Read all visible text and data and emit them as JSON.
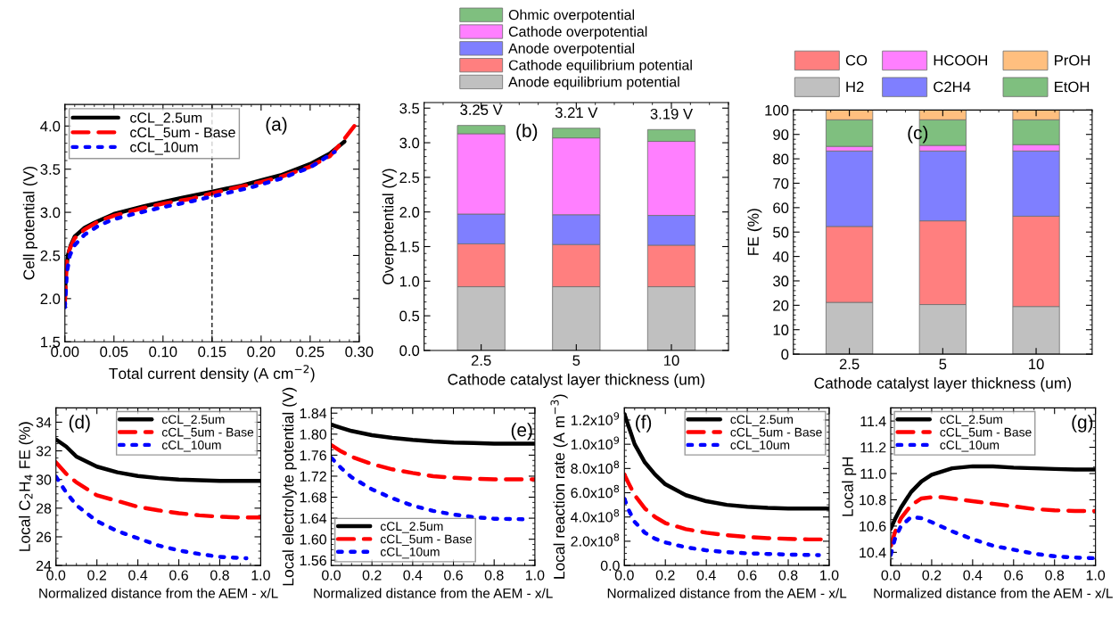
{
  "chart_data": [
    {
      "type": "line",
      "xlabel": "Total current density (A cm$^{−2}$)",
      "ylabel": "Cell potential (V)",
      "annotations": [
        "(a)"
      ],
      "xlim": [
        0,
        0.3
      ],
      "ylim": [
        1.5,
        4.25
      ],
      "xticks": [
        {
          "value": 0,
          "label": "0.00"
        },
        {
          "value": 0.05,
          "label": "0.05"
        },
        {
          "value": 0.1,
          "label": "0.10"
        },
        {
          "value": 0.15,
          "label": "0.15"
        },
        {
          "value": 0.2,
          "label": "0.20"
        },
        {
          "value": 0.25,
          "label": "0.25"
        },
        {
          "value": 0.3,
          "label": "0.30"
        }
      ],
      "yticks": [
        1.5,
        {
          "value": 2.0,
          "label": "2.0"
        },
        2.5,
        {
          "value": 3.0,
          "label": "3.0"
        },
        3.5,
        {
          "value": 4.0,
          "label": "4.0"
        }
      ],
      "legend": "top left",
      "grid": false,
      "ref_lines": [
        {
          "axis": "x",
          "value": 0.15,
          "color": "#000000",
          "line_style": "dashed"
        }
      ],
      "series": [
        {
          "name": "cCL_2.5um",
          "color": "#000000",
          "line_style": "solid",
          "x": [
            0,
            0.001,
            0.003,
            0.006,
            0.01,
            0.02,
            0.03,
            0.05,
            0.08,
            0.1,
            0.12,
            0.15,
            0.18,
            0.2,
            0.22,
            0.25,
            0.27,
            0.285
          ],
          "values": [
            2.0,
            2.3,
            2.5,
            2.62,
            2.72,
            2.82,
            2.88,
            2.98,
            3.07,
            3.12,
            3.17,
            3.24,
            3.31,
            3.37,
            3.43,
            3.56,
            3.68,
            3.82
          ]
        },
        {
          "name": "cCL_5um - Base",
          "color": "#ff0000",
          "line_style": "dashed",
          "x": [
            0,
            0.002,
            0.005,
            0.01,
            0.02,
            0.035,
            0.05,
            0.08,
            0.1,
            0.13,
            0.15,
            0.18,
            0.2,
            0.22,
            0.25,
            0.27,
            0.28,
            0.295
          ],
          "values": [
            1.95,
            2.45,
            2.58,
            2.7,
            2.8,
            2.9,
            2.96,
            3.05,
            3.1,
            3.16,
            3.22,
            3.3,
            3.35,
            3.41,
            3.53,
            3.65,
            3.78,
            4.0
          ]
        },
        {
          "name": "cCL_10um",
          "color": "#0000ff",
          "line_style": "dotted",
          "x": [
            0,
            0.002,
            0.005,
            0.01,
            0.02,
            0.035,
            0.05,
            0.07,
            0.1,
            0.13,
            0.16,
            0.19,
            0.22,
            0.25,
            0.275
          ],
          "values": [
            1.9,
            2.3,
            2.5,
            2.62,
            2.74,
            2.85,
            2.92,
            2.98,
            3.06,
            3.13,
            3.21,
            3.29,
            3.39,
            3.52,
            3.7
          ]
        }
      ]
    },
    {
      "type": "bar",
      "stacked": true,
      "xlabel": "Cathode catalyst layer thickness (um)",
      "ylabel": "Overpotential (V)",
      "annotations": [
        "(b)"
      ],
      "categories": [
        "2.5",
        "5",
        "10"
      ],
      "ylim": [
        0,
        3.58
      ],
      "yticks": [
        {
          "value": 0,
          "label": "0.0"
        },
        {
          "value": 0.5,
          "label": "0.5"
        },
        {
          "value": 1.0,
          "label": "1.0"
        },
        {
          "value": 1.5,
          "label": "1.5"
        },
        {
          "value": 2.0,
          "label": "2.0"
        },
        {
          "value": 2.5,
          "label": "2.5"
        },
        {
          "value": 3.0,
          "label": "3.0"
        },
        {
          "value": 3.5,
          "label": "3.5"
        }
      ],
      "legend": "top",
      "grid": false,
      "totals": [
        "3.25 V",
        "3.21 V",
        "3.19 V"
      ],
      "series": [
        {
          "name": "Anode equilibrium potential",
          "color": "#c0c0c0",
          "values": [
            0.92,
            0.92,
            0.92
          ]
        },
        {
          "name": "Cathode equilibrium potential",
          "color": "#ff7f7f",
          "values": [
            0.62,
            0.61,
            0.6
          ]
        },
        {
          "name": "Anode overpotential",
          "color": "#7f7fff",
          "values": [
            0.43,
            0.43,
            0.43
          ]
        },
        {
          "name": "Cathode overpotential",
          "color": "#ff7fff",
          "values": [
            1.16,
            1.11,
            1.07
          ]
        },
        {
          "name": "Ohmic overpotential",
          "color": "#7fbf7f",
          "values": [
            0.12,
            0.14,
            0.17
          ]
        }
      ]
    },
    {
      "type": "bar",
      "stacked": true,
      "xlabel": "Cathode catalyst layer thickness (um)",
      "ylabel": "FE (%)",
      "annotations": [
        "(c)"
      ],
      "categories": [
        "2.5",
        "5",
        "10"
      ],
      "ylim": [
        0,
        100
      ],
      "yticks": [
        0,
        10,
        20,
        30,
        40,
        50,
        60,
        70,
        80,
        90,
        100
      ],
      "legend": "top",
      "grid": false,
      "series": [
        {
          "name": "H2",
          "color": "#c0c0c0",
          "values": [
            21.2,
            20.3,
            19.5
          ]
        },
        {
          "name": "CO",
          "color": "#ff7f7f",
          "values": [
            31.1,
            34.3,
            37.0
          ]
        },
        {
          "name": "C2H4",
          "color": "#7f7fff",
          "values": [
            30.9,
            28.6,
            26.7
          ]
        },
        {
          "name": "HCOOH",
          "color": "#ff7fff",
          "values": [
            1.9,
            2.3,
            2.6
          ]
        },
        {
          "name": "EtOH",
          "color": "#7fbf7f",
          "values": [
            10.9,
            10.5,
            10.2
          ]
        },
        {
          "name": "PrOH",
          "color": "#ffbf7f",
          "values": [
            4,
            4,
            4
          ]
        }
      ]
    },
    {
      "type": "line",
      "xlabel": "Normalized distance from the AEM - x/L",
      "ylabel": "Local C$_{2}$H$_{4}$ FE (%)",
      "annotations": [
        "(d)"
      ],
      "xlim": [
        0,
        1
      ],
      "ylim": [
        24,
        35
      ],
      "xticks": [
        {
          "value": 0,
          "label": "0.0"
        },
        0.2,
        0.4,
        0.6,
        0.8,
        {
          "value": 1,
          "label": "1.0"
        }
      ],
      "yticks": [
        24,
        26,
        28,
        30,
        32,
        34
      ],
      "legend": "top right",
      "grid": false,
      "series": [
        {
          "name": "cCL_2.5um",
          "color": "#000000",
          "line_style": "solid",
          "x": [
            0,
            0.05,
            0.1,
            0.2,
            0.3,
            0.4,
            0.5,
            0.6,
            0.7,
            0.8,
            0.9,
            1.0
          ],
          "values": [
            32.8,
            32.3,
            31.6,
            30.9,
            30.5,
            30.25,
            30.1,
            30.0,
            29.95,
            29.9,
            29.9,
            29.9
          ]
        },
        {
          "name": "cCL_5um - Base",
          "color": "#ff0000",
          "line_style": "dashed",
          "x": [
            0,
            0.05,
            0.1,
            0.2,
            0.3,
            0.4,
            0.5,
            0.6,
            0.7,
            0.8,
            0.9,
            1.0
          ],
          "values": [
            31.2,
            30.4,
            29.8,
            28.9,
            28.5,
            28.1,
            27.85,
            27.65,
            27.5,
            27.4,
            27.35,
            27.35
          ]
        },
        {
          "name": "cCL_10um",
          "color": "#0000ff",
          "line_style": "dotted",
          "x": [
            0,
            0.05,
            0.1,
            0.2,
            0.3,
            0.4,
            0.5,
            0.6,
            0.7,
            0.8,
            0.93
          ],
          "values": [
            30.2,
            29.1,
            28.2,
            27.1,
            26.4,
            25.9,
            25.4,
            25.05,
            24.8,
            24.6,
            24.5
          ]
        }
      ]
    },
    {
      "type": "line",
      "xlabel": "Normalized distance from the AEM - x/L",
      "ylabel": "Local electrolyte potential (V)",
      "annotations": [
        "(e)"
      ],
      "xlim": [
        0,
        1
      ],
      "ylim": [
        1.55,
        1.85
      ],
      "xticks": [
        {
          "value": 0,
          "label": "0.0"
        },
        0.2,
        0.4,
        0.6,
        0.8,
        {
          "value": 1,
          "label": "1.0"
        }
      ],
      "yticks": [
        1.56,
        {
          "value": 1.6,
          "label": "1.60"
        },
        1.64,
        1.68,
        1.72,
        1.76,
        {
          "value": 1.8,
          "label": "1.80"
        },
        1.84
      ],
      "legend": "bottom left",
      "grid": false,
      "series": [
        {
          "name": "cCL_2.5um",
          "color": "#000000",
          "line_style": "solid",
          "x": [
            0,
            0.05,
            0.1,
            0.2,
            0.3,
            0.4,
            0.5,
            0.6,
            0.7,
            0.8,
            0.9,
            1.0
          ],
          "values": [
            1.818,
            1.812,
            1.806,
            1.798,
            1.793,
            1.789,
            1.786,
            1.784,
            1.783,
            1.782,
            1.782,
            1.782
          ]
        },
        {
          "name": "cCL_5um - Base",
          "color": "#ff0000",
          "line_style": "dashed",
          "x": [
            0,
            0.05,
            0.1,
            0.2,
            0.3,
            0.4,
            0.5,
            0.6,
            0.7,
            0.8,
            0.9,
            1.0
          ],
          "values": [
            1.779,
            1.767,
            1.757,
            1.743,
            1.733,
            1.726,
            1.72,
            1.717,
            1.715,
            1.714,
            1.714,
            1.714
          ]
        },
        {
          "name": "cCL_10um",
          "color": "#0000ff",
          "line_style": "dotted",
          "x": [
            0,
            0.05,
            0.1,
            0.2,
            0.3,
            0.4,
            0.5,
            0.6,
            0.7,
            0.8,
            0.95
          ],
          "values": [
            1.755,
            1.735,
            1.718,
            1.695,
            1.678,
            1.664,
            1.654,
            1.647,
            1.642,
            1.639,
            1.638
          ]
        }
      ]
    },
    {
      "type": "line",
      "xlabel": "Normalized distance from the AEM - x/L",
      "ylabel": "Local reaction rate (A m$^{−3}$)",
      "annotations": [
        "(f)"
      ],
      "xlim": [
        0,
        1
      ],
      "ylim": [
        0,
        1300000000.0
      ],
      "xticks": [
        {
          "value": 0,
          "label": "0.0"
        },
        0.2,
        0.4,
        0.6,
        0.8,
        {
          "value": 1,
          "label": "1.0"
        }
      ],
      "yticks": [
        {
          "value": 0,
          "label": "0.0"
        },
        {
          "value": 200000000.0,
          "label": "2.0x10$^{8}$"
        },
        {
          "value": 400000000.0,
          "label": "4.0x10$^{8}$"
        },
        {
          "value": 600000000.0,
          "label": "6.0x10$^{8}$"
        },
        {
          "value": 800000000.0,
          "label": "8.0x10$^{8}$"
        },
        {
          "value": 1000000000.0,
          "label": "1.0x10$^{9}$"
        },
        {
          "value": 1200000000.0,
          "label": "1.2x10$^{9}$"
        }
      ],
      "legend": "top right",
      "grid": false,
      "series": [
        {
          "name": "cCL_2.5um",
          "color": "#000000",
          "line_style": "solid",
          "x": [
            0,
            0.02,
            0.05,
            0.1,
            0.15,
            0.2,
            0.3,
            0.4,
            0.5,
            0.6,
            0.7,
            0.8,
            0.9,
            1.0
          ],
          "values": [
            1250000000.0,
            1150000000.0,
            1000000000.0,
            850000000.0,
            750000000.0,
            670000000.0,
            580000000.0,
            530000000.0,
            500000000.0,
            485000000.0,
            475000000.0,
            470000000.0,
            470000000.0,
            470000000.0
          ]
        },
        {
          "name": "cCL_5um - Base",
          "color": "#ff0000",
          "line_style": "dashed",
          "x": [
            0,
            0.02,
            0.05,
            0.1,
            0.15,
            0.2,
            0.3,
            0.4,
            0.5,
            0.6,
            0.7,
            0.8,
            0.9,
            1.0
          ],
          "values": [
            750000000.0,
            680000000.0,
            580000000.0,
            470000000.0,
            400000000.0,
            350000000.0,
            300000000.0,
            270000000.0,
            250000000.0,
            235000000.0,
            225000000.0,
            220000000.0,
            215000000.0,
            215000000.0
          ]
        },
        {
          "name": "cCL_10um",
          "color": "#0000ff",
          "line_style": "dotted",
          "x": [
            0,
            0.02,
            0.05,
            0.1,
            0.15,
            0.2,
            0.3,
            0.4,
            0.5,
            0.6,
            0.7,
            0.8,
            0.95
          ],
          "values": [
            550000000.0,
            460000000.0,
            360000000.0,
            270000000.0,
            220000000.0,
            190000000.0,
            150000000.0,
            125000000.0,
            110000000.0,
            100000000.0,
            95000000.0,
            90000000.0,
            85000000.0
          ]
        }
      ]
    },
    {
      "type": "line",
      "xlabel": "Normalized distance from the AEM - x/L",
      "ylabel": "Local pH",
      "annotations": [
        "(g)"
      ],
      "xlim": [
        0,
        1
      ],
      "ylim": [
        10.3,
        11.5
      ],
      "xticks": [
        {
          "value": 0,
          "label": "0.0"
        },
        0.2,
        0.4,
        0.6,
        0.8,
        {
          "value": 1,
          "label": "1.0"
        }
      ],
      "yticks": [
        10.4,
        10.6,
        10.8,
        {
          "value": 11.0,
          "label": "11.0"
        },
        11.2,
        11.4
      ],
      "legend": "top left",
      "grid": false,
      "series": [
        {
          "name": "cCL_2.5um",
          "color": "#000000",
          "line_style": "solid",
          "x": [
            0,
            0.02,
            0.05,
            0.1,
            0.15,
            0.2,
            0.3,
            0.4,
            0.5,
            0.6,
            0.7,
            0.8,
            0.9,
            1.0
          ],
          "values": [
            10.58,
            10.65,
            10.74,
            10.86,
            10.94,
            10.99,
            11.04,
            11.055,
            11.055,
            11.045,
            11.04,
            11.035,
            11.03,
            11.03
          ]
        },
        {
          "name": "cCL_5um - Base",
          "color": "#ff0000",
          "line_style": "dashed",
          "x": [
            0,
            0.02,
            0.05,
            0.1,
            0.15,
            0.2,
            0.25,
            0.3,
            0.4,
            0.5,
            0.6,
            0.7,
            0.8,
            0.9,
            1.0
          ],
          "values": [
            10.45,
            10.55,
            10.66,
            10.76,
            10.81,
            10.82,
            10.82,
            10.81,
            10.79,
            10.77,
            10.75,
            10.73,
            10.72,
            10.715,
            10.715
          ]
        },
        {
          "name": "cCL_10um",
          "color": "#0000ff",
          "line_style": "dotted",
          "x": [
            0,
            0.02,
            0.05,
            0.1,
            0.15,
            0.2,
            0.3,
            0.4,
            0.5,
            0.6,
            0.7,
            0.8,
            0.9,
            1.0
          ],
          "values": [
            10.38,
            10.5,
            10.6,
            10.67,
            10.66,
            10.63,
            10.56,
            10.5,
            10.45,
            10.42,
            10.39,
            10.37,
            10.36,
            10.355
          ]
        }
      ]
    }
  ]
}
